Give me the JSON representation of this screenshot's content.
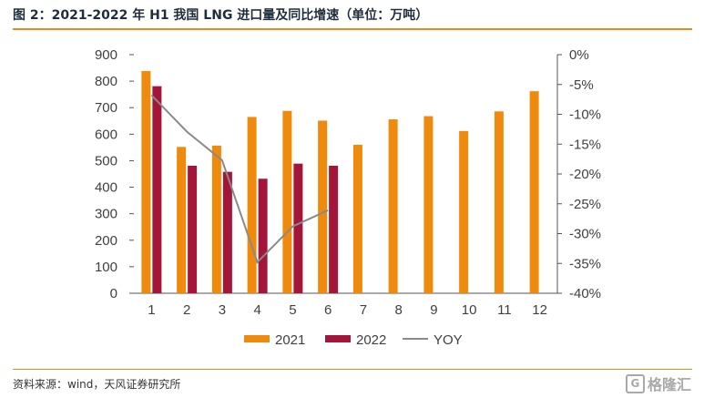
{
  "title": "图 2：2021-2022 年 H1 我国 LNG 进口量及同比增速（单位：万吨）",
  "source": "资料来源：wind，天风证券研究所",
  "watermark": "格隆汇",
  "watermark_icon": "G-logo-icon",
  "colors": {
    "s2021": "#ef8a0d",
    "s2022": "#a31539",
    "yoy": "#8a8a8a",
    "accent": "#e8891b"
  },
  "chart_data": {
    "type": "bar",
    "categories": [
      "1",
      "2",
      "3",
      "4",
      "5",
      "6",
      "7",
      "8",
      "9",
      "10",
      "11",
      "12"
    ],
    "series": [
      {
        "name": "2021",
        "type": "bar",
        "axis": "left",
        "values": [
          838,
          552,
          557,
          665,
          688,
          651,
          560,
          656,
          668,
          612,
          686,
          762
        ]
      },
      {
        "name": "2022",
        "type": "bar",
        "axis": "left",
        "values": [
          781,
          481,
          458,
          432,
          489,
          481,
          null,
          null,
          null,
          null,
          null,
          null
        ]
      },
      {
        "name": "YOY",
        "type": "line",
        "axis": "right",
        "values": [
          -6.8,
          -12.9,
          -17.7,
          -34.8,
          -28.8,
          -26.1,
          null,
          null,
          null,
          null,
          null,
          null
        ]
      }
    ],
    "y_left": {
      "min": 0,
      "max": 900,
      "ticks": [
        0,
        100,
        200,
        300,
        400,
        500,
        600,
        700,
        800,
        900
      ]
    },
    "y_right": {
      "min": -40,
      "max": 0,
      "ticks": [
        "0%",
        "-5%",
        "-10%",
        "-15%",
        "-20%",
        "-25%",
        "-30%",
        "-35%",
        "-40%"
      ]
    },
    "legend": [
      "2021",
      "2022",
      "YOY"
    ],
    "legend_position": "bottom",
    "grid": false
  }
}
